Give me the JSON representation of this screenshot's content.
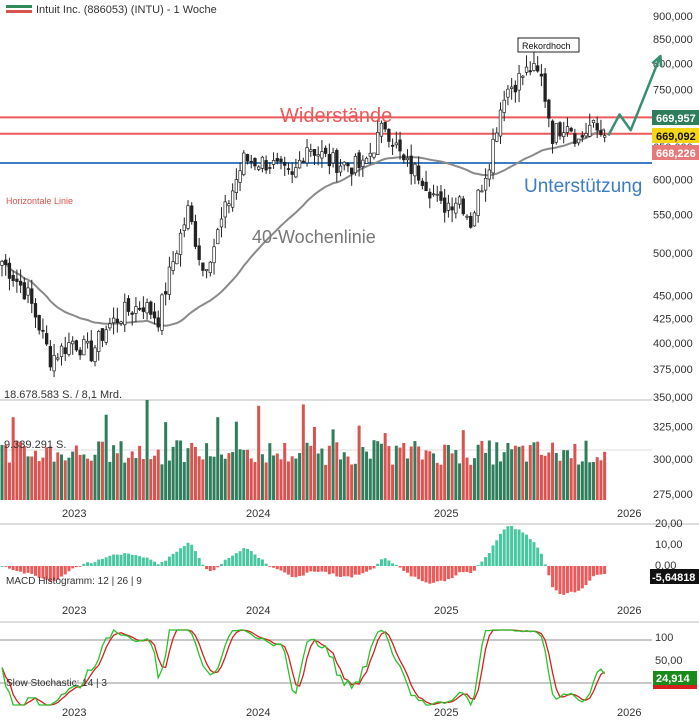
{
  "header": {
    "title": "Intuit Inc. (886053) (INTU) - 1 Woche",
    "legend_color": "#2e8b57"
  },
  "colors": {
    "up": "#2e7d5b",
    "down": "#d9534f",
    "resistance": "#ea5a5a",
    "support": "#3c7dc4",
    "ma": "#8a8a8a",
    "arrow": "#3a8f72",
    "macd_pos": "#49c7a0",
    "macd_neg": "#ec5a5a",
    "stoch_k": "#29c229",
    "stoch_d": "#d62020"
  },
  "chart_data": [
    {
      "type": "candlestick",
      "title": "Intuit Inc. (886053) (INTU) - 1 Woche",
      "scale": "log",
      "ylim": [
        260000,
        900000
      ],
      "y_ticks": [
        "900,000",
        "850,000",
        "800,000",
        "750,000",
        "700,000",
        "650,000",
        "600,000",
        "550,000",
        "500,000",
        "450,000",
        "425,000",
        "400,000",
        "375,000",
        "350,000",
        "325,000",
        "300,000",
        "275,000"
      ],
      "x_ticks": [
        "2023",
        "2024",
        "2025",
        "2026"
      ],
      "price_labels": [
        {
          "value": "669,957",
          "color": "#2e7d5b"
        },
        {
          "value": "669,092",
          "color": "#f5d515"
        },
        {
          "value": "668,226",
          "color": "#e67a7a"
        }
      ],
      "annotations": {
        "resistance": "Widerstände",
        "support": "Unterstützung",
        "ma": "40-Wochenlinie",
        "record": "Rekordhoch",
        "horizontal_line": "Horizontale Linie"
      },
      "levels": {
        "resistance_1": 700000,
        "resistance_2": 672000,
        "support": 625000
      },
      "anchors": [
        {
          "week": 0,
          "price": 490000
        },
        {
          "week": 7,
          "price": 450000
        },
        {
          "week": 13,
          "price": 385000
        },
        {
          "week": 19,
          "price": 402000
        },
        {
          "week": 24,
          "price": 390000
        },
        {
          "week": 28,
          "price": 415000
        },
        {
          "week": 33,
          "price": 432000
        },
        {
          "week": 38,
          "price": 440000
        },
        {
          "week": 42,
          "price": 425000
        },
        {
          "week": 50,
          "price": 555000
        },
        {
          "week": 54,
          "price": 480000
        },
        {
          "week": 57,
          "price": 510000
        },
        {
          "week": 65,
          "price": 630000
        },
        {
          "week": 72,
          "price": 625000
        },
        {
          "week": 78,
          "price": 600000
        },
        {
          "week": 82,
          "price": 655000
        },
        {
          "week": 88,
          "price": 628000
        },
        {
          "week": 97,
          "price": 618000
        },
        {
          "week": 103,
          "price": 688000
        },
        {
          "week": 108,
          "price": 625000
        },
        {
          "week": 113,
          "price": 605000
        },
        {
          "week": 118,
          "price": 560000
        },
        {
          "week": 123,
          "price": 575000
        },
        {
          "week": 126,
          "price": 540000
        },
        {
          "week": 131,
          "price": 630000
        },
        {
          "week": 135,
          "price": 745000
        },
        {
          "week": 142,
          "price": 790000
        },
        {
          "week": 145,
          "price": 770000
        },
        {
          "week": 148,
          "price": 670000
        },
        {
          "week": 152,
          "price": 695000
        },
        {
          "week": 155,
          "price": 660000
        },
        {
          "week": 158,
          "price": 685000
        },
        {
          "week": 162,
          "price": 669092
        }
      ],
      "projection": [
        {
          "week": 163,
          "price": 669092
        },
        {
          "week": 166,
          "price": 705000
        },
        {
          "week": 169,
          "price": 678000
        },
        {
          "week": 177,
          "price": 815000
        }
      ]
    },
    {
      "type": "bar",
      "title": "Volume",
      "labels": [
        "18.678.583 S. / 8,1 Mrd.",
        "9.339.291 S."
      ]
    },
    {
      "type": "bar",
      "title": "MACD Histogramm: 12 | 26 | 9",
      "y_ticks": [
        "20,00",
        "10,00",
        "0,00"
      ],
      "last_value": "-5,64818",
      "x_ticks": [
        "2023",
        "2024",
        "2025",
        "2026"
      ]
    },
    {
      "type": "line",
      "title": "Slow Stochastic: 14 | 3",
      "y_ticks": [
        "100",
        "50,00"
      ],
      "last_value": "24,914",
      "levels": [
        80,
        20
      ],
      "x_ticks": [
        "2023",
        "2024",
        "2025",
        "2026"
      ]
    }
  ]
}
